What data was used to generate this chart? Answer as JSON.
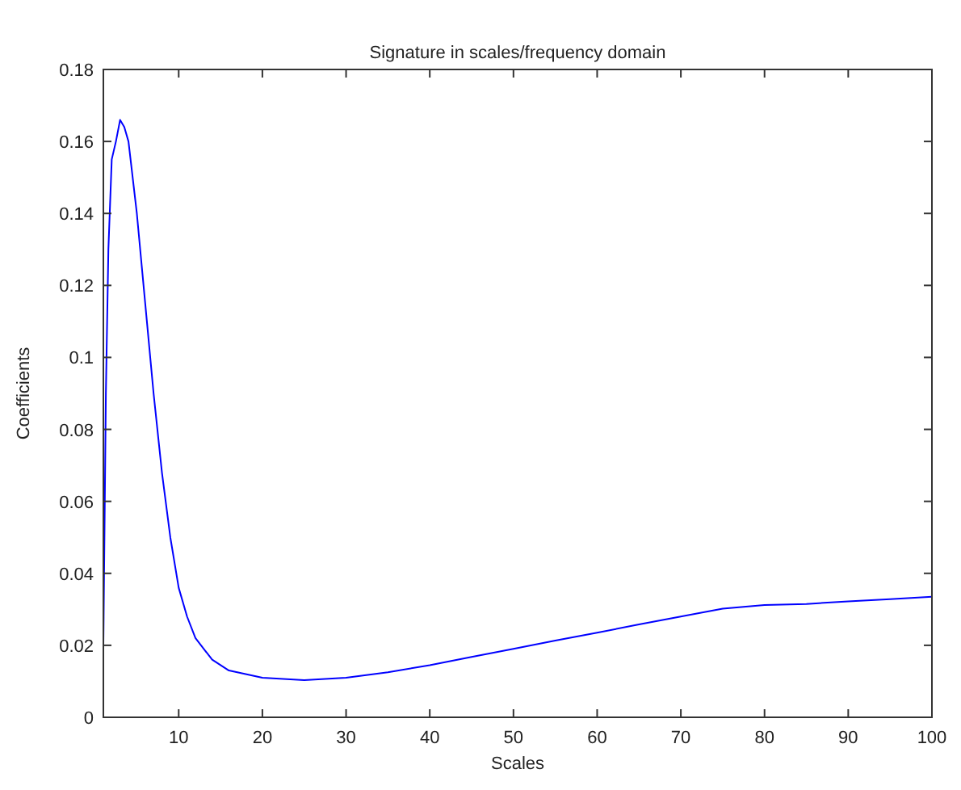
{
  "chart_data": {
    "type": "line",
    "title": "Signature in scales/frequency domain",
    "xlabel": "Scales",
    "ylabel": "Coefficients",
    "series": [
      {
        "color": "#0000ff",
        "x": [
          1,
          1.3,
          1.6,
          2,
          2.5,
          3,
          3.5,
          4,
          5,
          6,
          7,
          8,
          9,
          10,
          11,
          12,
          14,
          16,
          18,
          20,
          25,
          30,
          35,
          40,
          45,
          50,
          55,
          60,
          65,
          70,
          75,
          80,
          85,
          90,
          95,
          100
        ],
        "values": [
          0.02,
          0.09,
          0.13,
          0.155,
          0.16,
          0.166,
          0.164,
          0.16,
          0.14,
          0.115,
          0.09,
          0.068,
          0.05,
          0.036,
          0.028,
          0.022,
          0.016,
          0.013,
          0.012,
          0.011,
          0.0103,
          0.011,
          0.0125,
          0.0145,
          0.0168,
          0.019,
          0.0213,
          0.0235,
          0.0258,
          0.028,
          0.0302,
          0.0312,
          0.0315,
          0.0322,
          0.0328,
          0.0335
        ]
      }
    ],
    "xlim": [
      1,
      100
    ],
    "xticks": [
      10,
      20,
      30,
      40,
      50,
      60,
      70,
      80,
      90,
      100
    ],
    "ylim": [
      0,
      0.18
    ],
    "yticks": [
      0,
      0.02,
      0.04,
      0.06,
      0.08,
      0.1,
      0.12,
      0.14,
      0.16,
      0.18
    ],
    "grid": false,
    "marker": "none",
    "line_style": "solid"
  }
}
